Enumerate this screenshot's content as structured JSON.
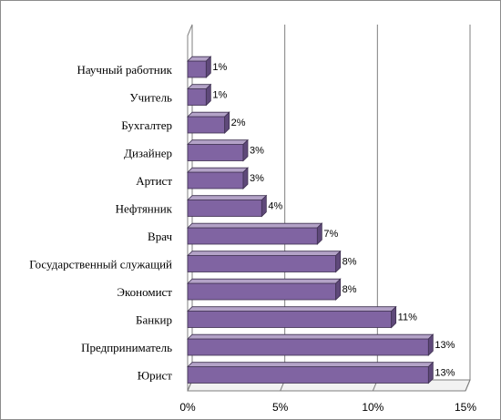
{
  "chart_data": {
    "type": "bar",
    "orientation": "horizontal",
    "style": "3d",
    "categories": [
      "Научный работник",
      "Учитель",
      "Бухгалтер",
      "Дизайнер",
      "Артист",
      "Нефтянник",
      "Врач",
      "Государственный служащий",
      "Экономист",
      "Банкир",
      "Предприниматель",
      "Юрист"
    ],
    "values": [
      1,
      1,
      2,
      3,
      3,
      4,
      7,
      8,
      8,
      11,
      13,
      13
    ],
    "value_labels": [
      "1%",
      "1%",
      "2%",
      "3%",
      "3%",
      "4%",
      "7%",
      "8%",
      "8%",
      "11%",
      "13%",
      "13%"
    ],
    "title": "",
    "xlabel": "",
    "ylabel": "",
    "xlim": [
      0,
      15
    ],
    "x_ticks": [
      0,
      5,
      10,
      15
    ],
    "x_tick_labels": [
      "0%",
      "5%",
      "10%",
      "15%"
    ],
    "grid": true,
    "legend": "none",
    "colors": {
      "bar_front": "#8064a2",
      "bar_top": "#b3a2c7",
      "bar_side": "#5f497a",
      "bar_edge": "#3f3151",
      "grid": "#7f7f7f",
      "wall": "#ffffff"
    }
  }
}
